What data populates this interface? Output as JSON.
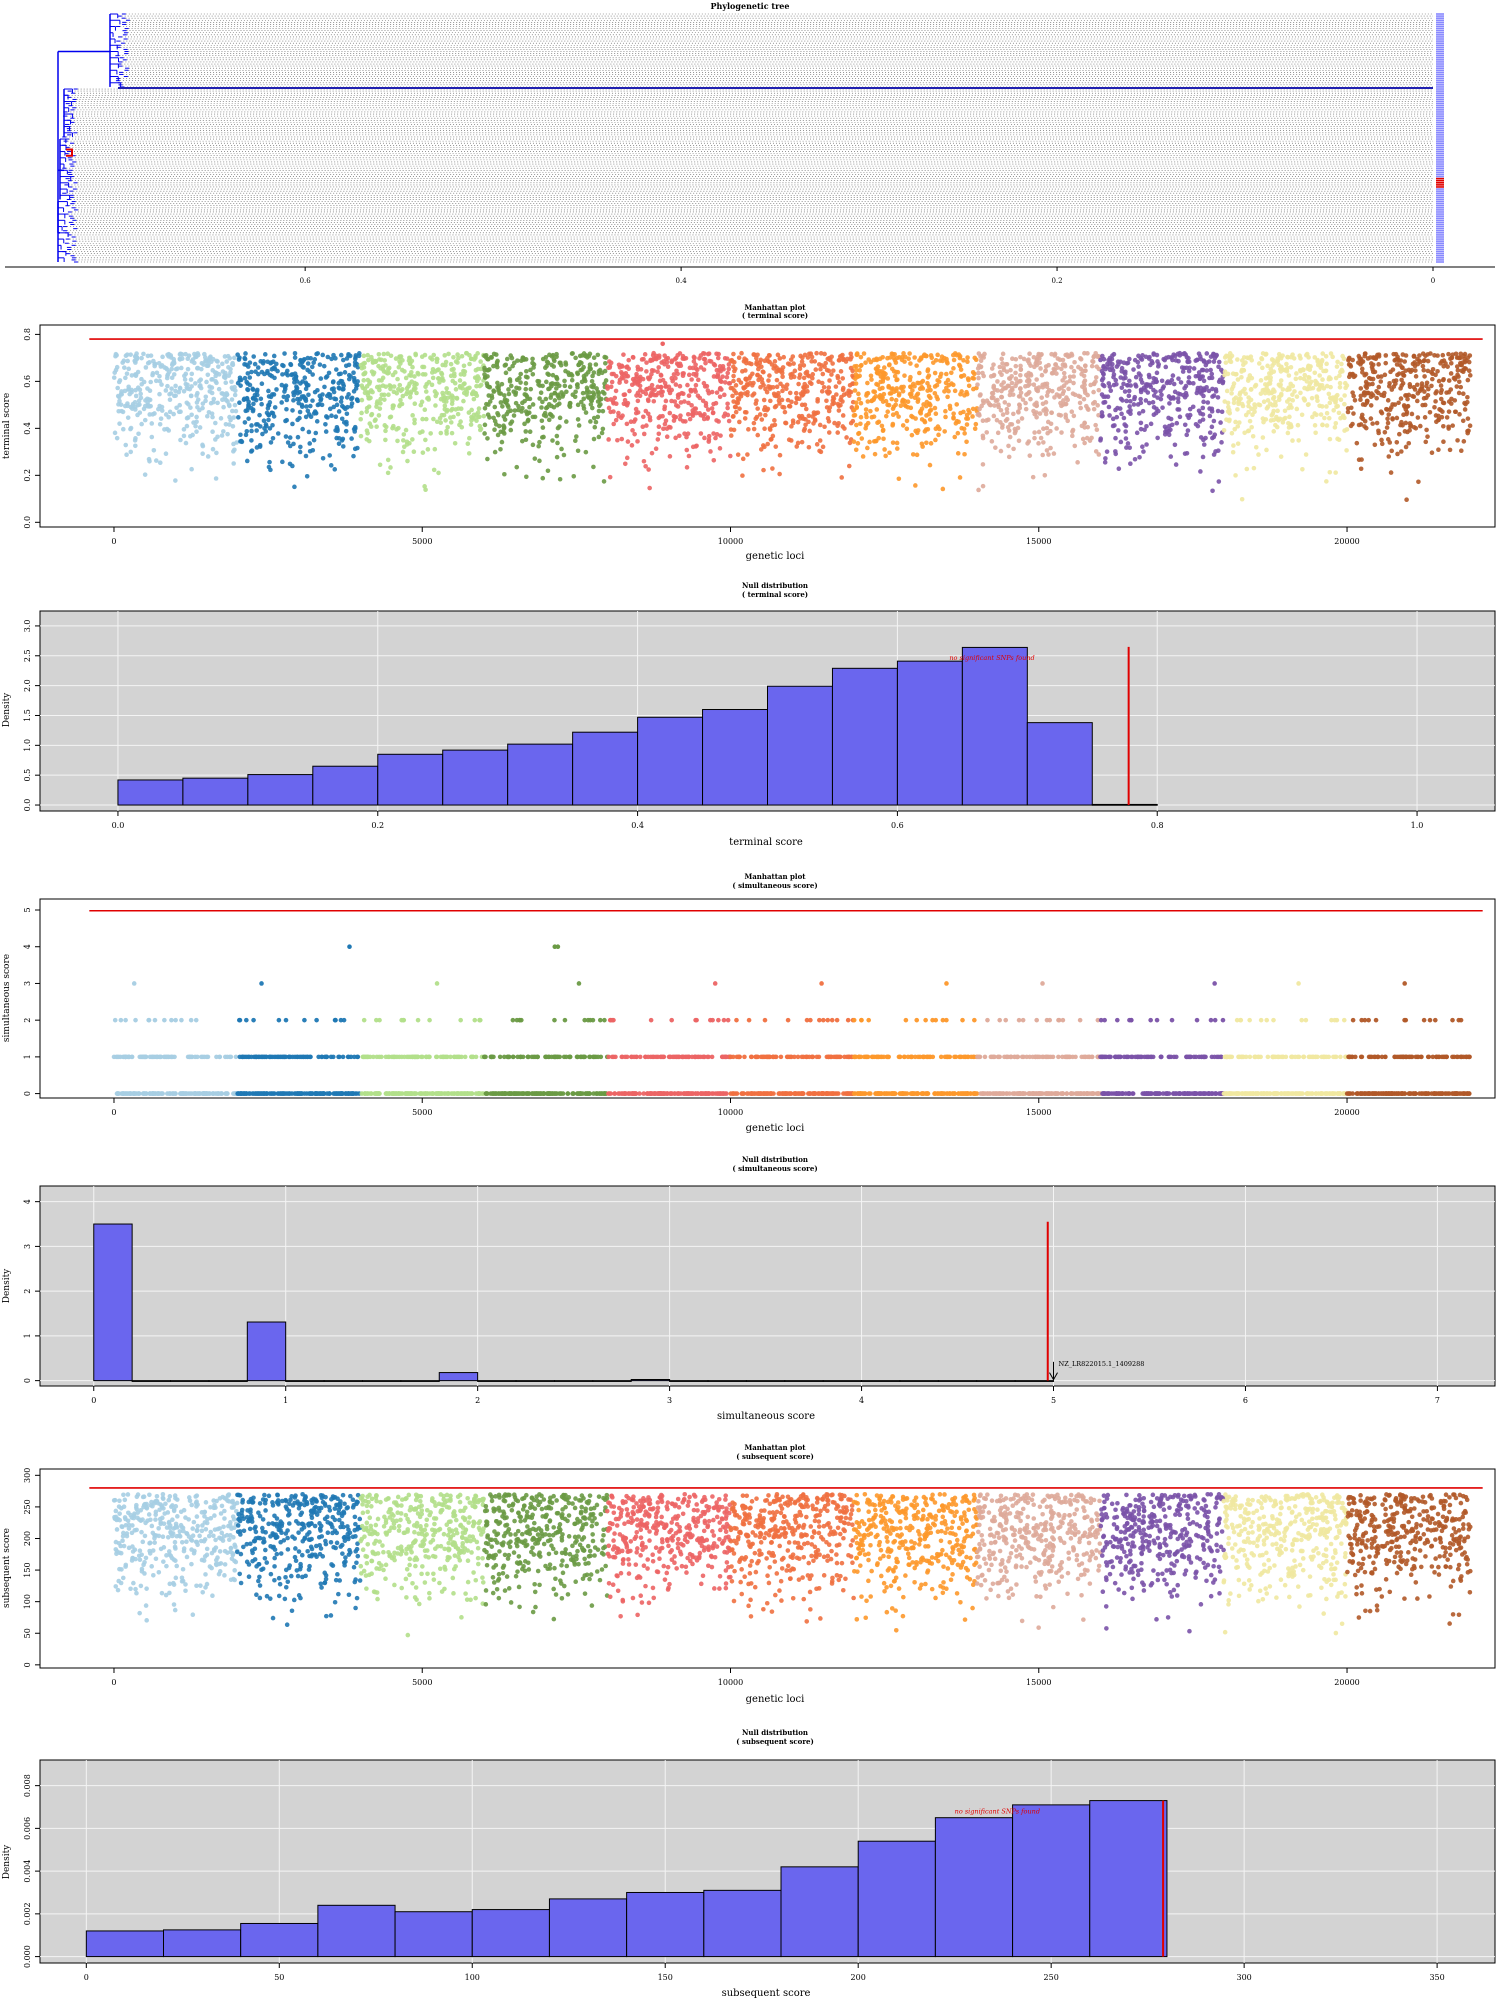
{
  "palette": [
    "#a6cee3",
    "#1f78b4",
    "#b2df8a",
    "#33a02c",
    "#fb9a99",
    "#e31a1c",
    "#fdbf6f",
    "#ff7f00",
    "#cab2d6",
    "#6a3d9a",
    "#ffff99",
    "#b15928"
  ],
  "series_colors": [
    "#a6cee3",
    "#1f78b4",
    "#b2df8a",
    "#6a9a44",
    "#ec6464",
    "#f07040",
    "#fd982b",
    "#deaa9a",
    "#7a52a8",
    "#f0e8a0",
    "#b15928"
  ],
  "threshold_color": "#e00000",
  "bar_color": "#6a66ee",
  "panel_bg": "#d3d3d3",
  "chart_data": [
    {
      "id": "tree",
      "type": "dendrogram",
      "title": "Phylogenetic tree",
      "x_ticks": [
        "0.6",
        "0.4",
        "0.2",
        "0"
      ],
      "x_tick_values": [
        0.6,
        0.4,
        0.2,
        0
      ],
      "xlim": [
        0.74,
        0
      ],
      "leaf_count": 120,
      "branch_color": "#0000ee",
      "highlight_color": "#e00000"
    },
    {
      "id": "manhattan-terminal",
      "type": "scatter",
      "title": "Manhattan plot",
      "subtitle": "( terminal score)",
      "xlabel": "genetic loci",
      "ylabel": "terminal score",
      "xlim": [
        -1200,
        22400
      ],
      "ylim": [
        -0.02,
        0.84
      ],
      "x_ticks": [
        0,
        5000,
        10000,
        15000,
        20000
      ],
      "y_ticks": [
        0.0,
        0.2,
        0.4,
        0.6,
        0.8
      ],
      "threshold": 0.78,
      "threshold_x": [
        -400,
        22200
      ],
      "groups": 11,
      "group_size": 2000,
      "n_loci": 22000,
      "value_range": [
        0,
        0.72
      ],
      "outliers": [
        {
          "x": 8900,
          "y": 0.76
        }
      ]
    },
    {
      "id": "null-terminal",
      "type": "bar",
      "title": "Null distribution",
      "subtitle": "( terminal score)",
      "xlabel": "terminal score",
      "ylabel": "Density",
      "xlim": [
        -0.06,
        1.06
      ],
      "ylim": [
        -0.1,
        3.25
      ],
      "x_ticks": [
        0.0,
        0.2,
        0.4,
        0.6,
        0.8,
        1.0
      ],
      "y_ticks": [
        0.0,
        0.5,
        1.0,
        1.5,
        2.0,
        2.5,
        3.0
      ],
      "bin_width": 0.05,
      "bins": [
        0.0,
        0.05,
        0.1,
        0.15,
        0.2,
        0.25,
        0.3,
        0.35,
        0.4,
        0.45,
        0.5,
        0.55,
        0.6,
        0.65,
        0.7,
        0.75
      ],
      "values": [
        0.42,
        0.45,
        0.51,
        0.65,
        0.85,
        0.92,
        1.02,
        1.22,
        1.47,
        1.6,
        1.99,
        2.29,
        2.41,
        2.64,
        1.38,
        0.01
      ],
      "threshold": 0.778,
      "threshold_top": 2.65,
      "annotation": "no significant SNPs found",
      "annotation_x": 0.64,
      "annotation_y": 2.43
    },
    {
      "id": "manhattan-simultaneous",
      "type": "scatter",
      "title": "Manhattan plot",
      "subtitle": "( simultaneous score)",
      "xlabel": "genetic loci",
      "ylabel": "simultaneous score",
      "xlim": [
        -1200,
        22400
      ],
      "ylim": [
        -0.12,
        5.3
      ],
      "x_ticks": [
        0,
        5000,
        10000,
        15000,
        20000
      ],
      "y_ticks": [
        0,
        1,
        2,
        3,
        4,
        5
      ],
      "threshold": 4.98,
      "threshold_x": [
        -400,
        22200
      ],
      "groups": 11,
      "group_size": 2000,
      "n_loci": 22000,
      "density_per_level": [
        1.0,
        0.55,
        0.1,
        0.01
      ],
      "outliers": [
        {
          "x": 3820,
          "y": 4
        },
        {
          "x": 7150,
          "y": 4
        },
        {
          "x": 7200,
          "y": 4
        }
      ]
    },
    {
      "id": "null-simultaneous",
      "type": "bar",
      "title": "Null distribution",
      "subtitle": "( simultaneous score)",
      "xlabel": "simultaneous score",
      "ylabel": "Density",
      "xlim": [
        -0.28,
        7.3
      ],
      "ylim": [
        -0.12,
        4.35
      ],
      "x_ticks": [
        0,
        1,
        2,
        3,
        4,
        5,
        6,
        7
      ],
      "y_ticks": [
        0,
        1,
        2,
        3,
        4
      ],
      "bin_width": 0.2,
      "bins": [
        0.0,
        0.2,
        0.4,
        0.6,
        0.8,
        1.0,
        1.2,
        1.4,
        1.6,
        1.8,
        2.0,
        2.2,
        2.4,
        2.6,
        2.8,
        3.0,
        3.2,
        3.4,
        3.6,
        3.8,
        4.0,
        4.2,
        4.4,
        4.6,
        4.8
      ],
      "values": [
        3.5,
        0,
        0,
        0,
        1.31,
        0,
        0,
        0,
        0,
        0.18,
        0,
        0,
        0,
        0,
        0.025,
        0,
        0,
        0,
        0,
        0,
        0,
        0,
        0,
        0,
        0
      ],
      "threshold": 4.97,
      "threshold_top": 3.55,
      "marked_snp": {
        "label": "NZ_LR822015.1_1409288",
        "x": 5.0,
        "y_top": 0.42
      }
    },
    {
      "id": "manhattan-subsequent",
      "type": "scatter",
      "title": "Manhattan plot",
      "subtitle": "( subsequent score)",
      "xlabel": "genetic loci",
      "ylabel": "subsequent score",
      "xlim": [
        -1200,
        22400
      ],
      "ylim": [
        -5,
        310
      ],
      "x_ticks": [
        0,
        5000,
        10000,
        15000,
        20000
      ],
      "y_ticks": [
        0,
        50,
        100,
        150,
        200,
        250,
        300
      ],
      "threshold": 280,
      "threshold_x": [
        -400,
        22200
      ],
      "groups": 11,
      "group_size": 2000,
      "n_loci": 22000,
      "value_range": [
        0,
        270
      ]
    },
    {
      "id": "null-subsequent",
      "type": "bar",
      "title": "Null distribution",
      "subtitle": "( subsequent score)",
      "xlabel": "subsequent score",
      "ylabel": "Density",
      "xlim": [
        -12,
        365
      ],
      "ylim": [
        -0.0003,
        0.0092
      ],
      "x_ticks": [
        0,
        50,
        100,
        150,
        200,
        250,
        300,
        350
      ],
      "y_ticks": [
        "0.000",
        "0.002",
        "0.004",
        "0.006",
        "0.008"
      ],
      "y_tick_values": [
        0,
        0.002,
        0.004,
        0.006,
        0.008
      ],
      "bin_width": 20,
      "bins": [
        0,
        20,
        40,
        60,
        80,
        100,
        120,
        140,
        160,
        180,
        200,
        220,
        240,
        260
      ],
      "values": [
        0.0012,
        0.00125,
        0.00155,
        0.0024,
        0.0021,
        0.0022,
        0.0027,
        0.003,
        0.0031,
        0.0042,
        0.0054,
        0.0065,
        0.0071,
        0.0073
      ],
      "threshold": 279,
      "threshold_top": 0.0073,
      "annotation": "no significant SNPs found",
      "annotation_x": 225,
      "annotation_y": 0.0067
    }
  ]
}
